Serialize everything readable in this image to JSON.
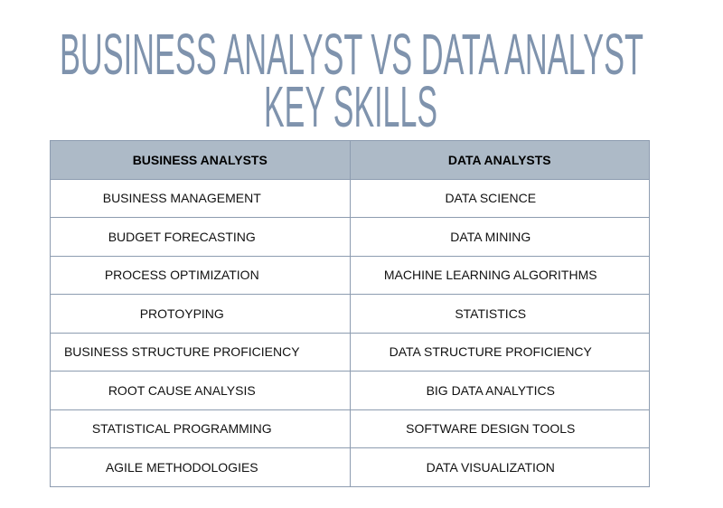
{
  "title": {
    "line1": "BUSINESS ANALYST VS DATA ANALYST",
    "line2": "KEY SKILLS",
    "color": "#7f93ad"
  },
  "table": {
    "headers": [
      "BUSINESS ANALYSTS",
      "DATA ANALYSTS"
    ],
    "header_bg": "#adbac7",
    "rows": [
      [
        "BUSINESS MANAGEMENT",
        "DATA SCIENCE"
      ],
      [
        "BUDGET FORECASTING",
        "DATA MINING"
      ],
      [
        "PROCESS OPTIMIZATION",
        "MACHINE LEARNING ALGORITHMS"
      ],
      [
        "PROTOYPING",
        "STATISTICS"
      ],
      [
        "BUSINESS STRUCTURE PROFICIENCY",
        "DATA STRUCTURE PROFICIENCY"
      ],
      [
        "ROOT CAUSE ANALYSIS",
        "BIG DATA ANALYTICS"
      ],
      [
        "STATISTICAL PROGRAMMING",
        "SOFTWARE DESIGN TOOLS"
      ],
      [
        "AGILE METHODOLOGIES",
        "DATA VISUALIZATION"
      ]
    ]
  }
}
